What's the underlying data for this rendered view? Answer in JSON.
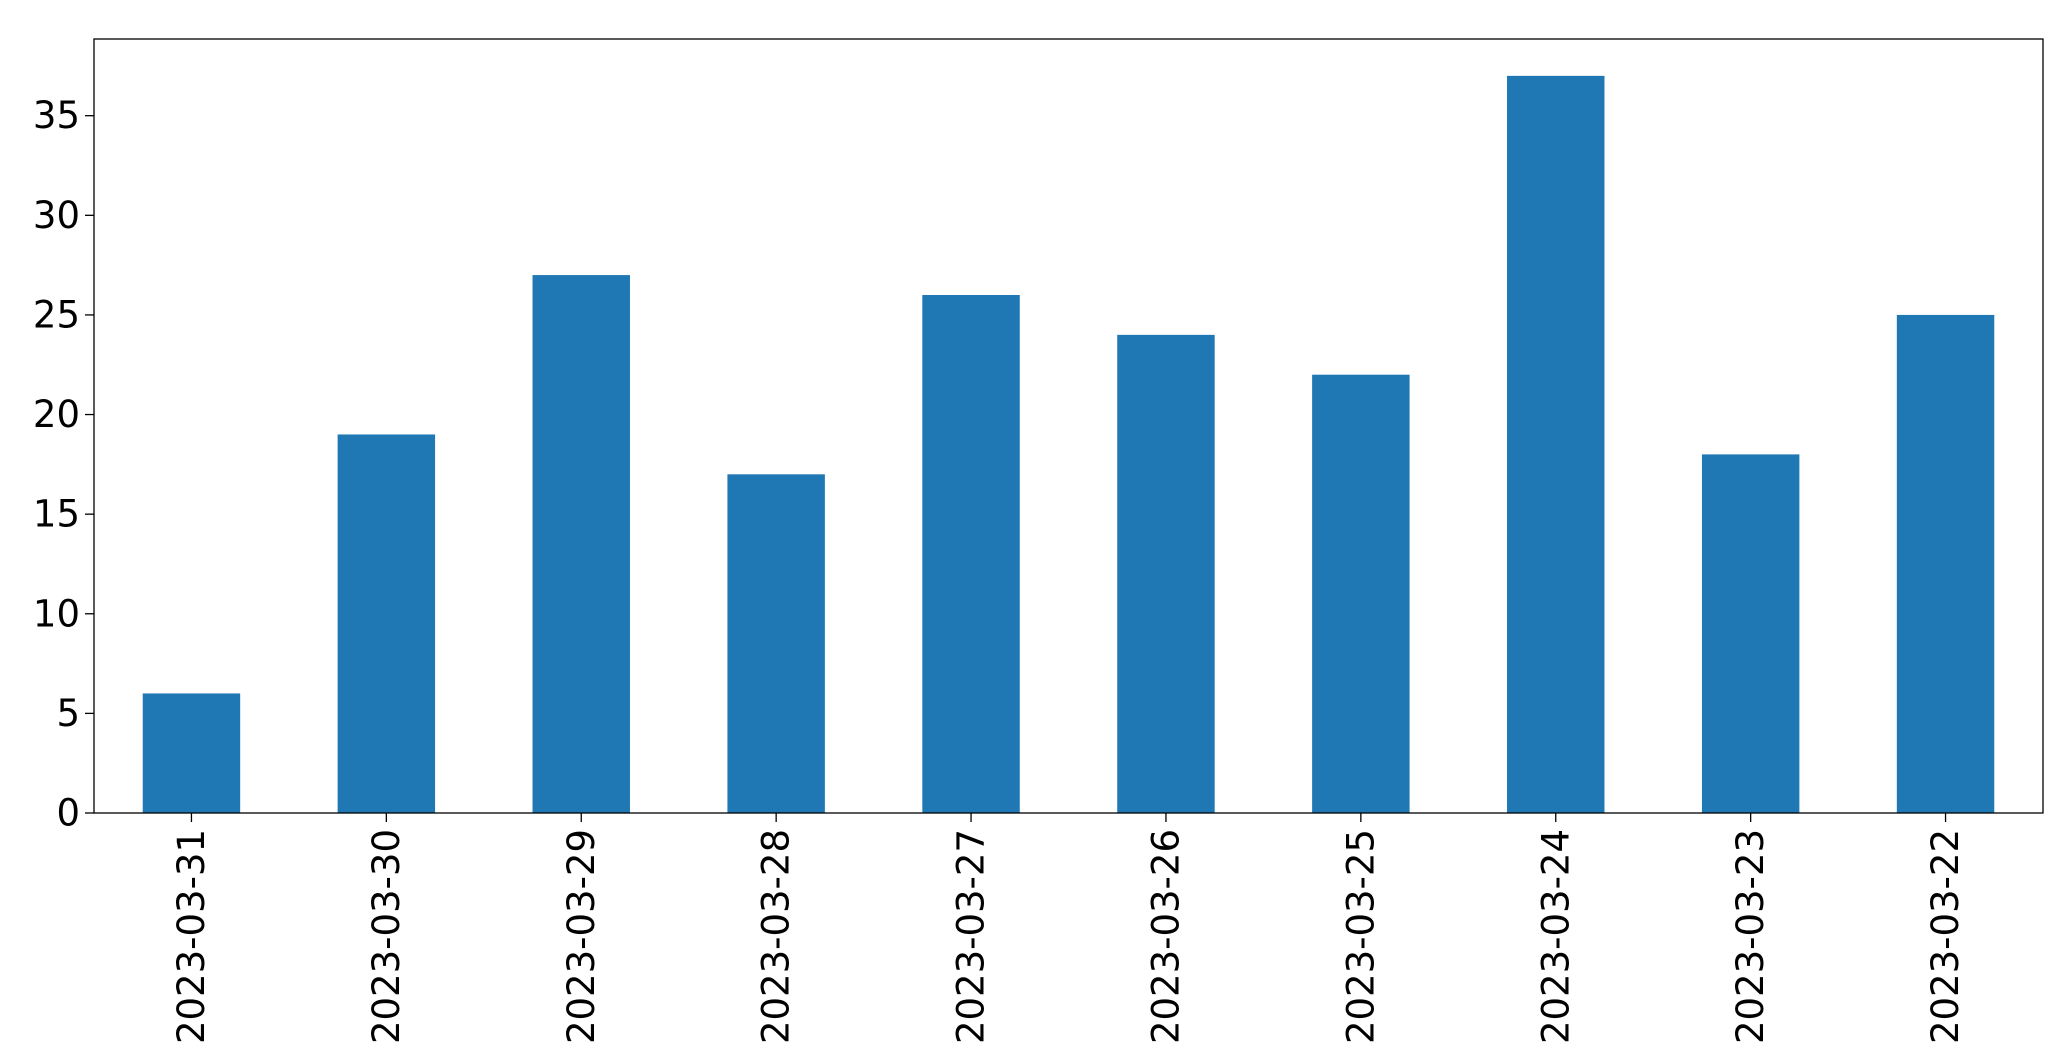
{
  "chart_data": {
    "type": "bar",
    "categories": [
      "2023-03-31",
      "2023-03-30",
      "2023-03-29",
      "2023-03-28",
      "2023-03-27",
      "2023-03-26",
      "2023-03-25",
      "2023-03-24",
      "2023-03-23",
      "2023-03-22"
    ],
    "values": [
      6,
      19,
      27,
      17,
      26,
      24,
      22,
      37,
      18,
      25
    ],
    "ylim": [
      0,
      38.85
    ],
    "yticks": [
      0,
      5,
      10,
      15,
      20,
      25,
      30,
      35
    ],
    "x_tick_rotation": "vertical",
    "grid": false,
    "legend": "none",
    "bar_color": "#1f77b4"
  }
}
